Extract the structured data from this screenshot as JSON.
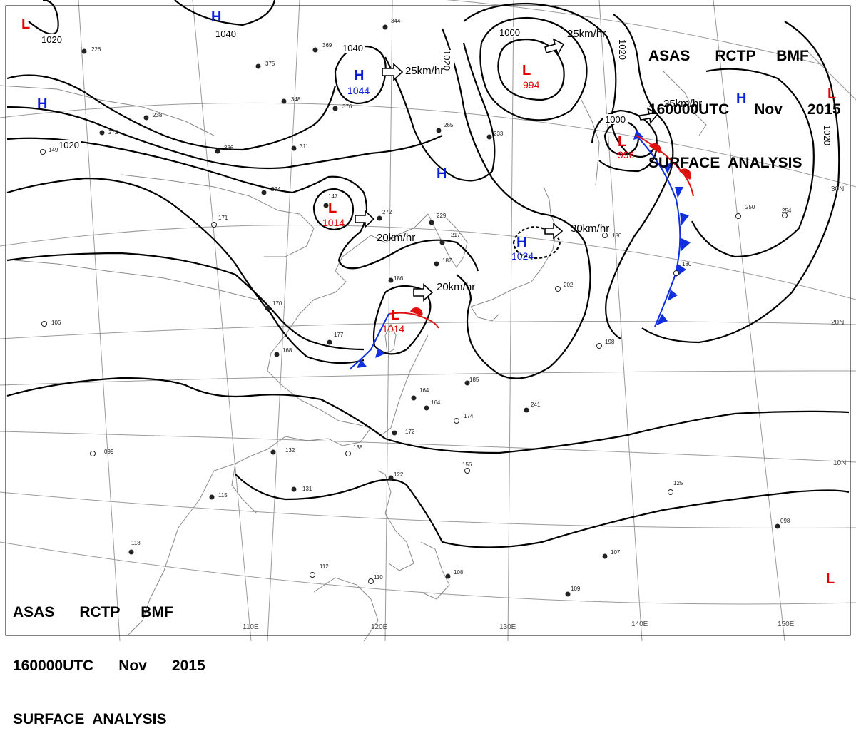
{
  "title": {
    "line1": "ASAS      RCTP     BMF",
    "line2": "160000UTC      Nov      2015",
    "line3": "SURFACE  ANALYSIS"
  },
  "colors": {
    "high": "#0a1fd8",
    "low": "#e30000",
    "cold_front": "#1030e0",
    "warm_front": "#e01010",
    "isobar": "#000000",
    "grid": "#9a9a9a",
    "coast": "#8a8a8a"
  },
  "longitude_labels": [
    "110E",
    "120E",
    "130E",
    "140E",
    "150E"
  ],
  "latitude_labels": [
    "30N",
    "20N",
    "10N"
  ],
  "isobar_labels": [
    "1020",
    "1040",
    "1020",
    "1040",
    "1020",
    "1000",
    "1020",
    "1000",
    "1020"
  ],
  "pressure_centers": [
    {
      "type": "H",
      "value": ""
    },
    {
      "type": "H",
      "value": ""
    },
    {
      "type": "H",
      "value": "1044"
    },
    {
      "type": "H",
      "value": ""
    },
    {
      "type": "H",
      "value": "1024"
    },
    {
      "type": "H",
      "value": ""
    },
    {
      "type": "L",
      "value": ""
    },
    {
      "type": "L",
      "value": "994"
    },
    {
      "type": "L",
      "value": "996"
    },
    {
      "type": "L",
      "value": "1014"
    },
    {
      "type": "L",
      "value": "1014"
    },
    {
      "type": "L",
      "value": ""
    },
    {
      "type": "L",
      "value": ""
    }
  ],
  "motion_labels": [
    "25km/hr",
    "25km/hr",
    "25km/hr",
    "20km/hr",
    "20km/hr",
    "30km/hr"
  ],
  "station_values": [
    "226",
    "369",
    "375",
    "348",
    "376",
    "238",
    "272",
    "149",
    "311",
    "336",
    "274",
    "147",
    "171",
    "265",
    "233",
    "344",
    "229",
    "272",
    "217",
    "186",
    "187",
    "170",
    "177",
    "168",
    "185",
    "164",
    "164",
    "172",
    "174",
    "241",
    "138",
    "132",
    "131",
    "115",
    "122",
    "112",
    "110",
    "108",
    "109",
    "107",
    "098",
    "125",
    "156",
    "180",
    "202",
    "198",
    "250",
    "254",
    "180",
    "099",
    "106",
    "118"
  ]
}
